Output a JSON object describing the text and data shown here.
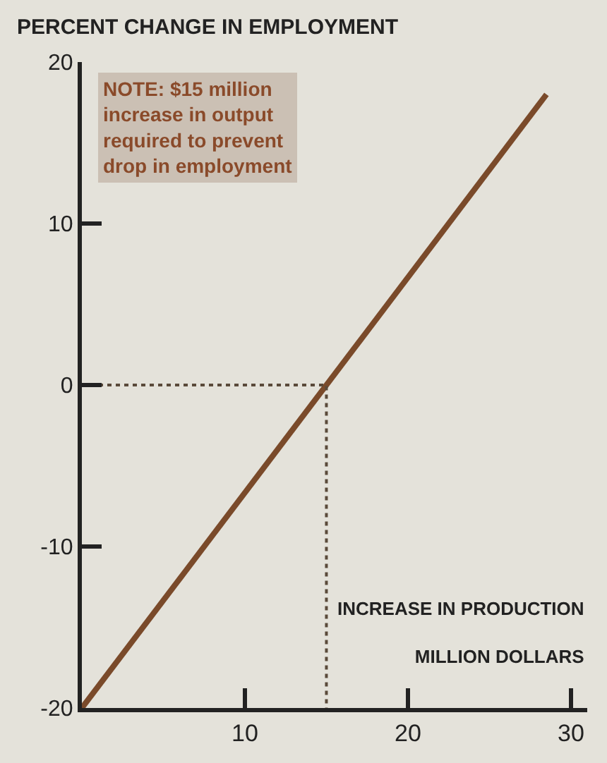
{
  "chart_data": {
    "type": "line",
    "ylabel": "PERCENT CHANGE IN EMPLOYMENT",
    "xlabel": "INCREASE IN PRODUCTION\nMILLION DOLLARS",
    "annotations": [
      "NOTE: $15 million\nincrease in output\nrequired to prevent\ndrop in employment"
    ],
    "series": [
      {
        "x": [
          0,
          28.5
        ],
        "values": [
          -20,
          18
        ],
        "color": "#7a4a2a",
        "line_style": "solid"
      },
      {
        "x": [
          0,
          15,
          15
        ],
        "values": [
          0,
          0,
          -20
        ],
        "color": "#5a4a3a",
        "line_style": "dotted"
      }
    ],
    "xlim": [
      0,
      31
    ],
    "ylim": [
      -20,
      20
    ],
    "xticks": [
      10,
      20,
      30
    ],
    "yticks": [
      -20,
      -10,
      0,
      10,
      20
    ],
    "grid": false,
    "legend": false,
    "marker": "none"
  }
}
